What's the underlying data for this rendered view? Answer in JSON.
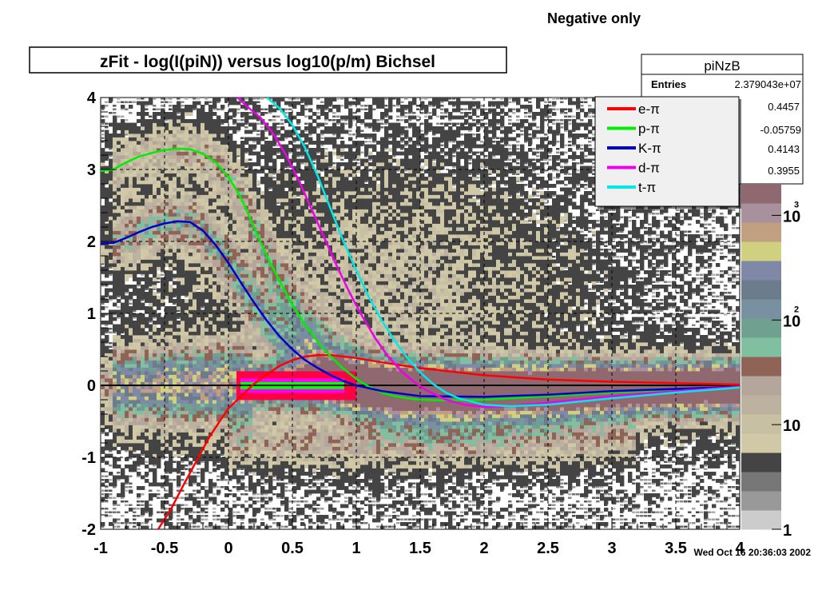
{
  "header": {
    "note": "Negative only",
    "title": "zFit - log(I(piN)) versus log10(p/m) Bichsel",
    "timestamp": "Wed Oct 16 20:36:03 2002"
  },
  "stats": {
    "name": "piNzB",
    "entries_label": "Entries",
    "entries_value": "2.379043e+07",
    "hidden_values": [
      "0.4457",
      "-0.05759",
      "0.4143",
      "0.3955"
    ]
  },
  "colorbar": {
    "labels": [
      {
        "text": "1",
        "level": 1
      },
      {
        "text": "10",
        "level": 10
      },
      {
        "text": "10",
        "sup": "2",
        "level": 100
      },
      {
        "text": "10",
        "sup": "3",
        "level": 1000
      }
    ],
    "colors": [
      "#cccccc",
      "#999999",
      "#777777",
      "#444444",
      "#d1c8a8",
      "#c8c0a3",
      "#bdb2a0",
      "#b5a69c",
      "#8f6456",
      "#80c0a0",
      "#70a090",
      "#7890a0",
      "#6c7c8c",
      "#8088a8",
      "#d0d080",
      "#c0a080",
      "#a8909c",
      "#906870"
    ]
  },
  "chart_data": {
    "type": "heatmap",
    "title": "zFit - log(I(piN)) versus log10(p/m) Bichsel",
    "xlabel": "",
    "ylabel": "",
    "xlim": [
      -1,
      4
    ],
    "ylim": [
      -2,
      4
    ],
    "x_ticks": [
      "-1",
      "-0.5",
      "0",
      "0.5",
      "1",
      "1.5",
      "2",
      "2.5",
      "3",
      "3.5",
      "4"
    ],
    "y_ticks": [
      "-2",
      "-1",
      "0",
      "1",
      "2",
      "3",
      "4"
    ],
    "grid": true,
    "colorscale": "log",
    "z_range": [
      1,
      2000
    ],
    "legend_position": "top-right",
    "series": [
      {
        "name": "e-π",
        "color": "#ff0000",
        "x": [
          -0.55,
          -0.45,
          -0.35,
          -0.25,
          -0.15,
          -0.05,
          0,
          0.1,
          0.2,
          0.3,
          0.4,
          0.5,
          0.6,
          0.7,
          0.8,
          1.0,
          1.2,
          1.5,
          2.0,
          2.5,
          3.0,
          3.5,
          4.0
        ],
        "y": [
          -2.0,
          -1.72,
          -1.38,
          -1.05,
          -0.72,
          -0.45,
          -0.32,
          -0.15,
          0.02,
          0.15,
          0.27,
          0.35,
          0.4,
          0.42,
          0.42,
          0.38,
          0.32,
          0.24,
          0.14,
          0.08,
          0.05,
          0.03,
          0.01
        ]
      },
      {
        "name": "p-π",
        "color": "#00ee00",
        "x": [
          -1.0,
          -0.9,
          -0.8,
          -0.7,
          -0.6,
          -0.5,
          -0.4,
          -0.3,
          -0.2,
          -0.1,
          0.0,
          0.1,
          0.2,
          0.3,
          0.4,
          0.5,
          0.6,
          0.7,
          0.8,
          0.9,
          1.0,
          1.1,
          1.2,
          1.3,
          1.4,
          1.5,
          1.7,
          2.0,
          2.5,
          3.0,
          3.5,
          4.0
        ],
        "y": [
          2.98,
          3.0,
          3.1,
          3.18,
          3.23,
          3.27,
          3.29,
          3.28,
          3.22,
          3.1,
          2.9,
          2.6,
          2.2,
          1.8,
          1.45,
          1.12,
          0.84,
          0.6,
          0.4,
          0.23,
          0.09,
          -0.02,
          -0.1,
          -0.15,
          -0.18,
          -0.2,
          -0.21,
          -0.2,
          -0.15,
          -0.1,
          -0.06,
          -0.02
        ]
      },
      {
        "name": "K-π",
        "color": "#0000cc",
        "x": [
          -1.0,
          -0.9,
          -0.8,
          -0.7,
          -0.6,
          -0.5,
          -0.4,
          -0.3,
          -0.2,
          -0.1,
          0.0,
          0.1,
          0.2,
          0.3,
          0.4,
          0.5,
          0.6,
          0.7,
          0.8,
          0.9,
          1.0,
          1.2,
          1.5,
          2.0,
          2.5,
          3.0,
          3.5,
          4.0
        ],
        "y": [
          1.97,
          1.98,
          2.05,
          2.13,
          2.2,
          2.25,
          2.28,
          2.27,
          2.15,
          1.95,
          1.7,
          1.42,
          1.15,
          0.9,
          0.68,
          0.5,
          0.35,
          0.24,
          0.14,
          0.06,
          0.0,
          -0.08,
          -0.15,
          -0.16,
          -0.13,
          -0.08,
          -0.05,
          -0.02
        ]
      },
      {
        "name": "d-π",
        "color": "#ee00ee",
        "x": [
          0.07,
          0.15,
          0.25,
          0.35,
          0.45,
          0.55,
          0.65,
          0.75,
          0.85,
          0.95,
          1.05,
          1.15,
          1.25,
          1.35,
          1.45,
          1.55,
          1.7,
          1.85,
          2.0,
          2.2,
          2.5,
          3.0,
          3.5,
          4.0
        ],
        "y": [
          4.0,
          3.87,
          3.72,
          3.5,
          3.2,
          2.85,
          2.45,
          2.05,
          1.65,
          1.28,
          0.95,
          0.65,
          0.4,
          0.2,
          0.05,
          -0.07,
          -0.2,
          -0.27,
          -0.3,
          -0.29,
          -0.24,
          -0.15,
          -0.08,
          -0.02
        ]
      },
      {
        "name": "t-π",
        "color": "#00e8e8",
        "x": [
          0.3,
          0.4,
          0.5,
          0.6,
          0.7,
          0.8,
          0.9,
          1.0,
          1.1,
          1.2,
          1.3,
          1.4,
          1.5,
          1.6,
          1.7,
          1.8,
          2.0,
          2.2,
          2.5,
          3.0,
          3.5,
          4.0
        ],
        "y": [
          4.0,
          3.85,
          3.62,
          3.3,
          2.9,
          2.45,
          2.0,
          1.6,
          1.22,
          0.9,
          0.62,
          0.38,
          0.18,
          0.02,
          -0.1,
          -0.18,
          -0.27,
          -0.29,
          -0.27,
          -0.18,
          -0.1,
          -0.03
        ]
      }
    ],
    "zero_line": 0
  }
}
